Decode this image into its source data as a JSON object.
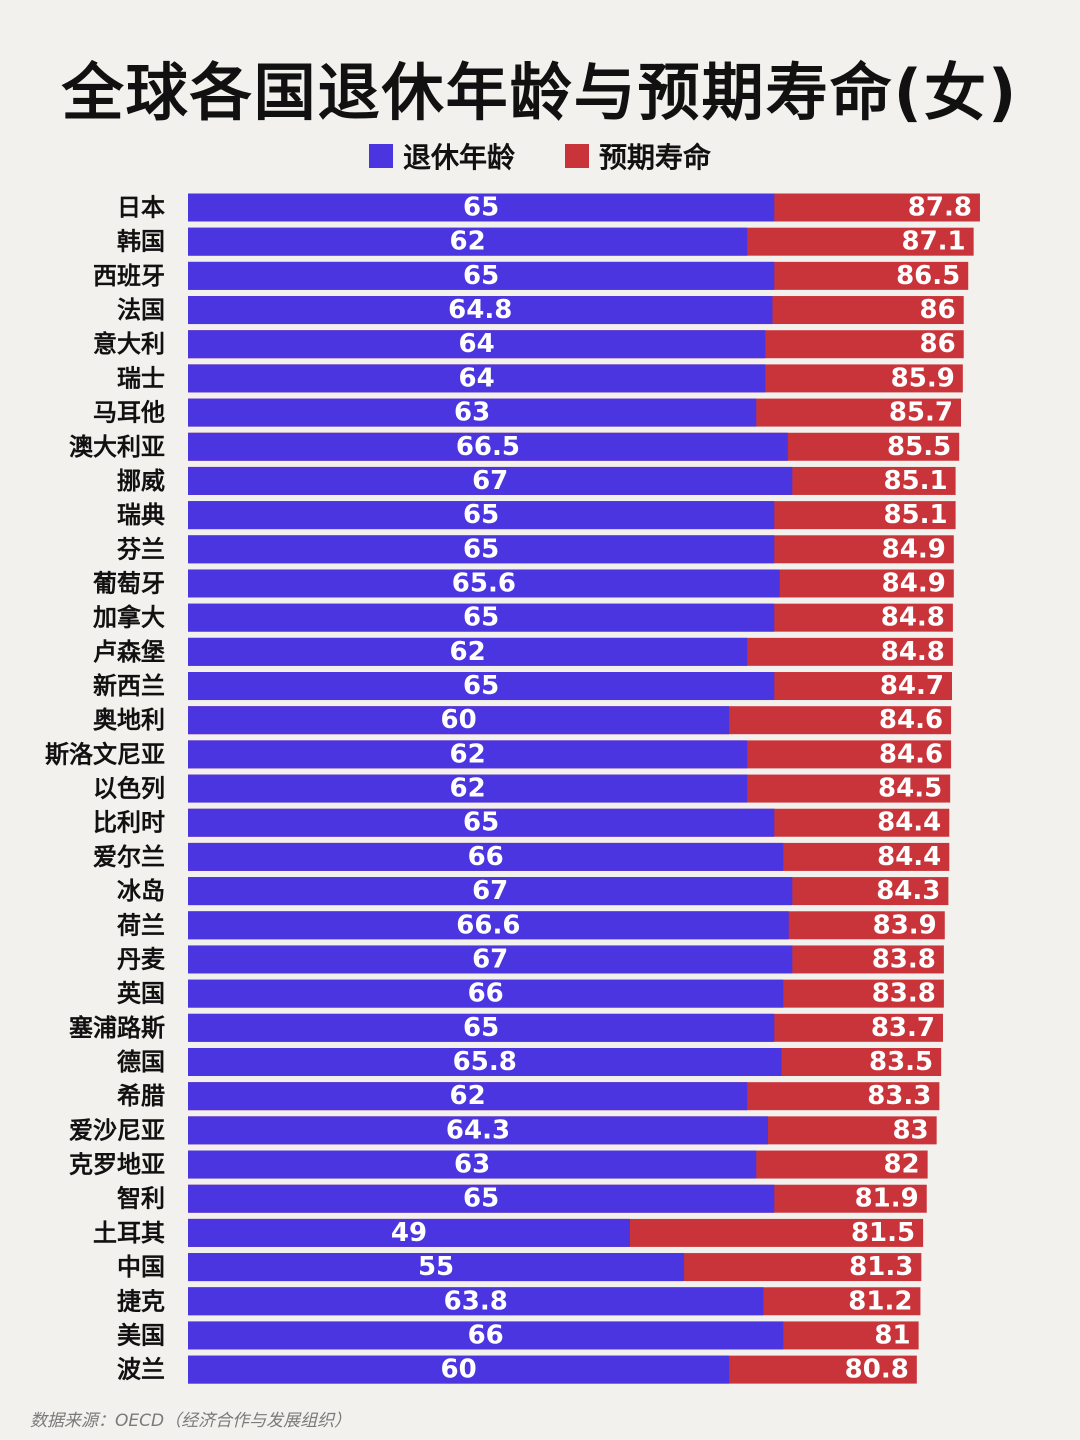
{
  "title": "全球各国退休年龄与预期寿命(女)",
  "legend": {
    "retire": "退休年龄",
    "life": "预期寿命"
  },
  "colors": {
    "retire": "#4b35e0",
    "life": "#c9343a"
  },
  "source": "数据来源：OECD（经济合作与发展组织）",
  "chart_data": {
    "type": "bar",
    "orientation": "horizontal",
    "title": "全球各国退休年龄与预期寿命(女)",
    "legend_position": "top",
    "categories": [
      "日本",
      "韩国",
      "西班牙",
      "法国",
      "意大利",
      "瑞士",
      "马耳他",
      "澳大利亚",
      "挪威",
      "瑞典",
      "芬兰",
      "葡萄牙",
      "加拿大",
      "卢森堡",
      "新西兰",
      "奥地利",
      "斯洛文尼亚",
      "以色列",
      "比利时",
      "爱尔兰",
      "冰岛",
      "荷兰",
      "丹麦",
      "英国",
      "塞浦路斯",
      "德国",
      "希腊",
      "爱沙尼亚",
      "克罗地亚",
      "智利",
      "土耳其",
      "中国",
      "捷克",
      "美国",
      "波兰"
    ],
    "series": [
      {
        "name": "退休年龄",
        "values": [
          65,
          62,
          65,
          64.8,
          64,
          64,
          63,
          66.5,
          67,
          65,
          65,
          65.6,
          65,
          62,
          65,
          60,
          62,
          62,
          65,
          66,
          67,
          66.6,
          67,
          66,
          65,
          65.8,
          62,
          64.3,
          63,
          65,
          49,
          55,
          63.8,
          66,
          60
        ]
      },
      {
        "name": "预期寿命",
        "values": [
          87.8,
          87.1,
          86.5,
          86,
          86,
          85.9,
          85.7,
          85.5,
          85.1,
          85.1,
          84.9,
          84.9,
          84.8,
          84.8,
          84.7,
          84.6,
          84.6,
          84.5,
          84.4,
          84.4,
          84.3,
          83.9,
          83.8,
          83.8,
          83.7,
          83.5,
          83.3,
          83,
          82,
          81.9,
          81.5,
          81.3,
          81.2,
          81,
          80.8
        ]
      }
    ],
    "xlim": [
      0,
      88
    ]
  }
}
